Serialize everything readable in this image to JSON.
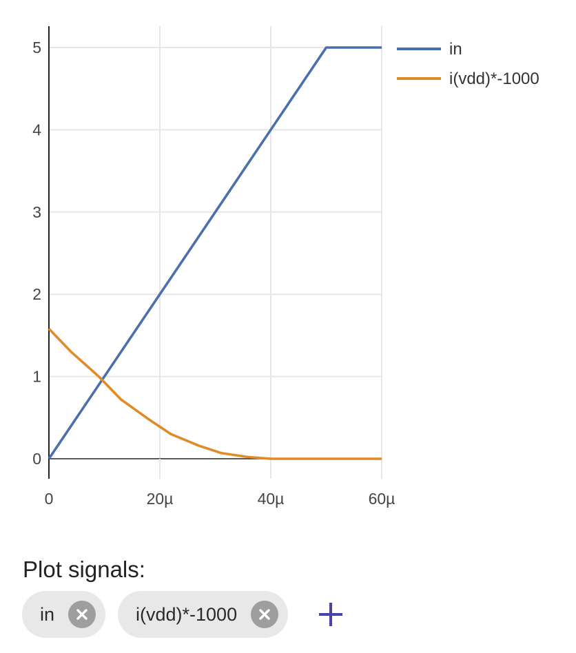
{
  "chart_data": {
    "type": "line",
    "x": [
      0,
      4,
      9,
      13,
      18,
      22,
      27,
      31,
      36,
      40,
      44,
      50,
      60
    ],
    "x_unit_note": "",
    "xlim": [
      0,
      60
    ],
    "ylim": [
      0,
      5
    ],
    "x_ticks": [
      "0",
      "20µ",
      "40µ",
      "60µ"
    ],
    "x_tick_values": [
      0,
      20,
      40,
      60
    ],
    "y_ticks": [
      "0",
      "1",
      "2",
      "3",
      "4",
      "5"
    ],
    "y_tick_values": [
      0,
      1,
      2,
      3,
      4,
      5
    ],
    "grid": true,
    "legend_position": "top-right",
    "series": [
      {
        "name": "in",
        "color": "#4a6fad",
        "points": [
          [
            0,
            0
          ],
          [
            50,
            5
          ],
          [
            60,
            5
          ]
        ]
      },
      {
        "name": "i(vdd)*-1000",
        "color": "#e08a28",
        "points": [
          [
            0,
            1.58
          ],
          [
            4,
            1.3
          ],
          [
            9,
            1.0
          ],
          [
            13,
            0.72
          ],
          [
            18,
            0.48
          ],
          [
            22,
            0.3
          ],
          [
            27,
            0.16
          ],
          [
            31,
            0.07
          ],
          [
            36,
            0.02
          ],
          [
            40,
            0.0
          ],
          [
            44,
            0.0
          ],
          [
            50,
            0.0
          ],
          [
            60,
            0.0
          ]
        ]
      }
    ]
  },
  "signals_panel": {
    "title": "Plot signals:",
    "chips": [
      {
        "label": "in",
        "remove_icon": "close-circle-icon"
      },
      {
        "label": "i(vdd)*-1000",
        "remove_icon": "close-circle-icon"
      }
    ],
    "add_icon": "plus-icon",
    "add_color": "#4b44a8"
  }
}
